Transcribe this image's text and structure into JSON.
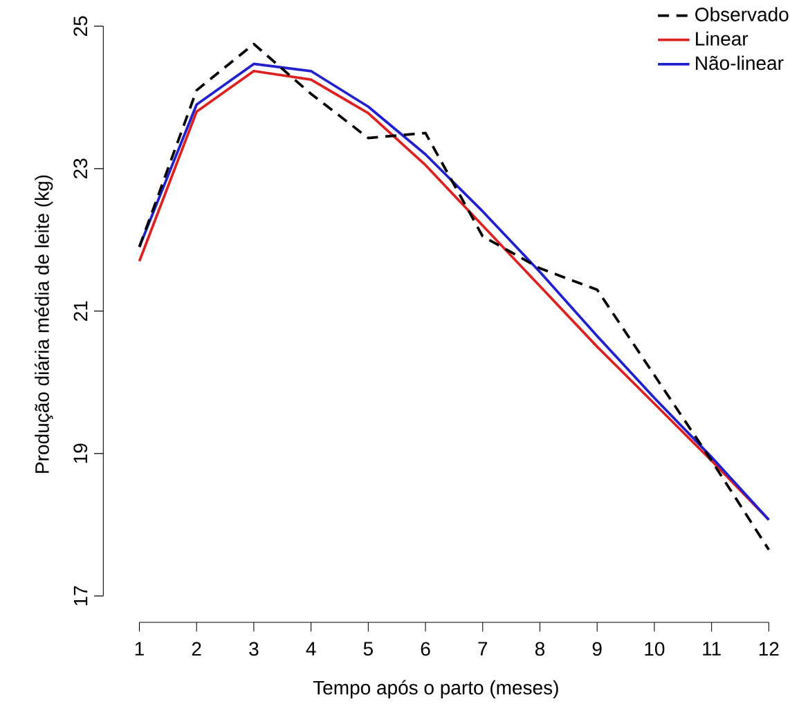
{
  "chart_data": {
    "type": "line",
    "xlabel": "Tempo após o parto (meses)",
    "ylabel": "Produção diária média de leite (kg)",
    "x": [
      1,
      2,
      3,
      4,
      5,
      6,
      7,
      8,
      9,
      10,
      11,
      12
    ],
    "series": [
      {
        "name": "Observado",
        "color": "#000000",
        "line_style": "dashed",
        "values": [
          21.9,
          24.1,
          24.75,
          24.05,
          23.43,
          23.5,
          22.05,
          21.6,
          21.3,
          20.1,
          18.9,
          17.65
        ]
      },
      {
        "name": "Linear",
        "color": "#dd2020",
        "line_style": "solid",
        "values": [
          21.7,
          23.8,
          24.37,
          24.25,
          23.78,
          23.05,
          22.2,
          21.35,
          20.5,
          19.7,
          18.9,
          18.07
        ]
      },
      {
        "name": "Não-linear",
        "color": "#2020cc",
        "line_style": "solid",
        "values": [
          21.9,
          23.9,
          24.47,
          24.37,
          23.87,
          23.2,
          22.4,
          21.55,
          20.65,
          19.78,
          18.95,
          18.07
        ]
      }
    ],
    "xlim": [
      0.37,
      12
    ],
    "ylim": [
      16.63,
      25
    ],
    "xticks": [
      1,
      2,
      3,
      4,
      5,
      6,
      7,
      8,
      9,
      10,
      11,
      12
    ],
    "yticks": [
      17,
      19,
      21,
      23,
      25
    ],
    "legend": "top right",
    "marker": "none"
  }
}
